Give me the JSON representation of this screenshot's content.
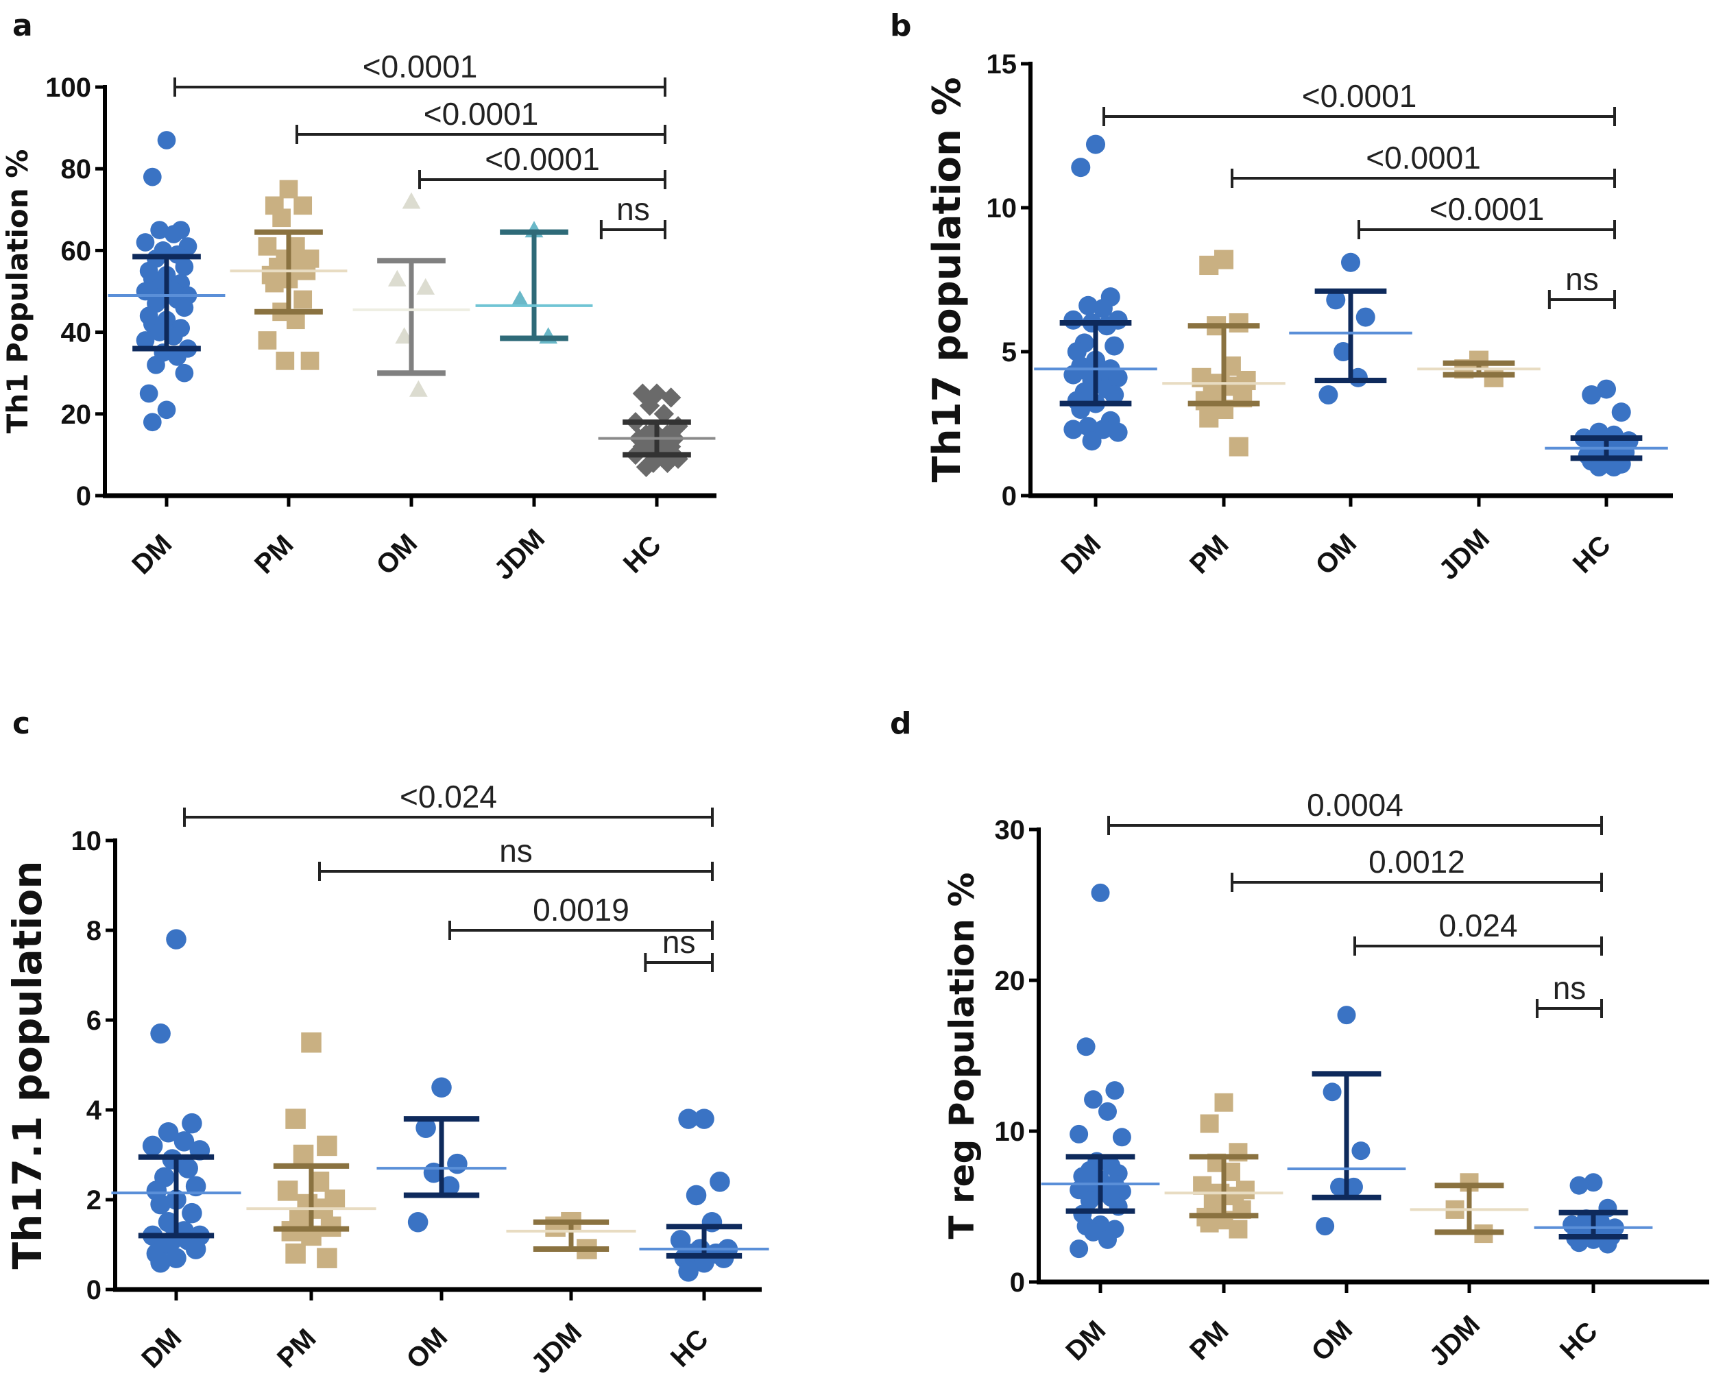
{
  "chart_data": [
    {
      "panel": "a",
      "type": "scatter",
      "ylabel": "Th1 Population %",
      "ylim": [
        0,
        100
      ],
      "yticks": [
        0,
        20,
        40,
        60,
        80,
        100
      ],
      "categories": [
        "DM",
        "PM",
        "OM",
        "JDM",
        "HC"
      ],
      "groups": [
        {
          "name": "DM",
          "marker": "circle",
          "color": "#3a73c4",
          "bar_color": "#0e2a5c",
          "mean_color": "#5a8fd8",
          "mean": 49,
          "sd_low": 36,
          "sd_high": 58.5,
          "values": [
            87,
            78,
            65,
            65,
            64,
            62,
            61,
            60,
            59,
            58,
            56,
            55,
            54,
            53,
            52,
            51,
            50,
            50,
            49,
            49,
            48,
            47,
            46,
            44,
            43,
            42,
            41,
            40,
            39,
            38,
            36,
            35,
            34,
            32,
            30,
            25,
            21,
            18
          ]
        },
        {
          "name": "PM",
          "marker": "square",
          "color": "#c9b082",
          "bar_color": "#8a7240",
          "mean_color": "#e8dcc2",
          "mean": 55,
          "sd_low": 45,
          "sd_high": 64.5,
          "values": [
            75,
            71,
            71,
            68,
            61,
            61,
            58,
            58,
            57,
            56,
            55,
            54,
            53,
            52,
            48,
            45,
            43,
            38,
            33,
            33
          ]
        },
        {
          "name": "OM",
          "marker": "triangle",
          "color": "#dcdcd0",
          "bar_color": "#808080",
          "mean_color": "#eeeee2",
          "mean": 45.5,
          "sd_low": 30,
          "sd_high": 57.5,
          "values": [
            72,
            53,
            51,
            39,
            26
          ]
        },
        {
          "name": "JDM",
          "marker": "triangle",
          "color": "#6ab8c8",
          "bar_color": "#2e6a78",
          "mean_color": "#70c4d4",
          "mean": 46.5,
          "sd_low": 38.5,
          "sd_high": 64.5,
          "values": [
            65,
            48,
            39
          ]
        },
        {
          "name": "HC",
          "marker": "diamond",
          "color": "#6a6a6a",
          "bar_color": "#333333",
          "mean_color": "#8a8a8a",
          "mean": 14,
          "sd_low": 10,
          "sd_high": 18,
          "values": [
            25,
            25,
            24,
            22,
            20,
            18,
            17,
            16,
            15,
            15,
            14,
            14,
            13,
            12,
            12,
            11,
            10,
            10,
            9,
            8,
            8,
            7
          ]
        }
      ],
      "comparisons": [
        {
          "from": "DM",
          "to": "HC",
          "label": "<0.0001"
        },
        {
          "from": "PM",
          "to": "HC",
          "label": "<0.0001"
        },
        {
          "from": "OM",
          "to": "HC",
          "label": "<0.0001"
        },
        {
          "from": "JDM",
          "to": "HC",
          "label": "ns"
        }
      ]
    },
    {
      "panel": "b",
      "type": "scatter",
      "ylabel": "Th17 population %",
      "ylim": [
        0,
        15
      ],
      "yticks": [
        0,
        5,
        10,
        15
      ],
      "categories": [
        "DM",
        "PM",
        "OM",
        "JDM",
        "HC"
      ],
      "groups": [
        {
          "name": "DM",
          "marker": "circle",
          "color": "#3a73c4",
          "bar_color": "#0e2a5c",
          "mean_color": "#5a8fd8",
          "mean": 4.4,
          "sd_low": 3.2,
          "sd_high": 6.0,
          "values": [
            12.2,
            11.4,
            6.9,
            6.6,
            6.5,
            6.1,
            6.1,
            6.0,
            5.9,
            5.3,
            5.2,
            5.0,
            4.7,
            4.5,
            4.4,
            4.3,
            4.2,
            4.2,
            4.1,
            4.0,
            3.7,
            3.6,
            3.5,
            3.3,
            3.2,
            3.0,
            2.6,
            2.4,
            2.3,
            2.3,
            2.2,
            1.9
          ]
        },
        {
          "name": "PM",
          "marker": "square",
          "color": "#c9b082",
          "bar_color": "#8a7240",
          "mean_color": "#e8dcc2",
          "mean": 3.9,
          "sd_low": 3.2,
          "sd_high": 5.9,
          "values": [
            8.2,
            8.0,
            6.0,
            5.9,
            4.5,
            4.1,
            4.0,
            3.9,
            3.8,
            3.6,
            3.4,
            3.3,
            3.0,
            2.7,
            1.7
          ]
        },
        {
          "name": "OM",
          "marker": "circle",
          "color": "#3a73c4",
          "bar_color": "#0e2a5c",
          "mean_color": "#5a8fd8",
          "mean": 5.65,
          "sd_low": 4.0,
          "sd_high": 7.1,
          "values": [
            8.1,
            6.8,
            6.2,
            5.0,
            4.1,
            3.5
          ]
        },
        {
          "name": "JDM",
          "marker": "square",
          "color": "#c9b082",
          "bar_color": "#8a7240",
          "mean_color": "#e8dcc2",
          "mean": 4.4,
          "sd_low": 4.2,
          "sd_high": 4.6,
          "values": [
            4.7,
            4.4,
            4.1
          ]
        },
        {
          "name": "HC",
          "marker": "circle",
          "color": "#3a73c4",
          "bar_color": "#0e2a5c",
          "mean_color": "#5a8fd8",
          "mean": 1.65,
          "sd_low": 1.3,
          "sd_high": 2.0,
          "values": [
            3.7,
            3.5,
            2.9,
            2.2,
            2.1,
            2.0,
            1.9,
            1.8,
            1.7,
            1.6,
            1.5,
            1.4,
            1.3,
            1.2,
            1.1,
            1.0,
            1.0
          ]
        }
      ],
      "comparisons": [
        {
          "from": "DM",
          "to": "HC",
          "label": "<0.0001"
        },
        {
          "from": "PM",
          "to": "HC",
          "label": "<0.0001"
        },
        {
          "from": "OM",
          "to": "HC",
          "label": "<0.0001"
        },
        {
          "from": "JDM",
          "to": "HC",
          "label": "ns"
        }
      ]
    },
    {
      "panel": "c",
      "type": "scatter",
      "ylabel": "Th17.1 population",
      "ylim": [
        0,
        10
      ],
      "yticks": [
        0,
        2,
        4,
        6,
        8,
        10
      ],
      "categories": [
        "DM",
        "PM",
        "OM",
        "JDM",
        "HC"
      ],
      "groups": [
        {
          "name": "DM",
          "marker": "circle",
          "color": "#3a73c4",
          "bar_color": "#0e2a5c",
          "mean_color": "#5a8fd8",
          "mean": 2.15,
          "sd_low": 1.2,
          "sd_high": 2.95,
          "values": [
            7.8,
            5.7,
            3.7,
            3.5,
            3.3,
            3.2,
            3.1,
            2.9,
            2.7,
            2.5,
            2.3,
            2.2,
            2.0,
            1.9,
            1.7,
            1.5,
            1.3,
            1.2,
            1.2,
            1.1,
            1.1,
            1.0,
            0.9,
            0.8,
            0.7,
            0.6
          ]
        },
        {
          "name": "PM",
          "marker": "square",
          "color": "#c9b082",
          "bar_color": "#8a7240",
          "mean_color": "#e8dcc2",
          "mean": 1.8,
          "sd_low": 1.35,
          "sd_high": 2.75,
          "values": [
            5.5,
            3.8,
            3.2,
            3.0,
            2.4,
            2.2,
            2.0,
            1.9,
            1.8,
            1.6,
            1.4,
            1.3,
            1.2,
            0.8,
            0.7
          ]
        },
        {
          "name": "OM",
          "marker": "circle",
          "color": "#3a73c4",
          "bar_color": "#0e2a5c",
          "mean_color": "#5a8fd8",
          "mean": 2.7,
          "sd_low": 2.1,
          "sd_high": 3.8,
          "values": [
            4.5,
            3.6,
            2.8,
            2.6,
            2.3,
            1.5
          ]
        },
        {
          "name": "JDM",
          "marker": "square",
          "color": "#c9b082",
          "bar_color": "#8a7240",
          "mean_color": "#e8dcc2",
          "mean": 1.3,
          "sd_low": 0.9,
          "sd_high": 1.5,
          "values": [
            1.5,
            1.4,
            0.9
          ]
        },
        {
          "name": "HC",
          "marker": "circle",
          "color": "#3a73c4",
          "bar_color": "#0e2a5c",
          "mean_color": "#5a8fd8",
          "mean": 0.9,
          "sd_low": 0.75,
          "sd_high": 1.4,
          "values": [
            3.8,
            3.8,
            2.4,
            2.1,
            1.5,
            1.1,
            0.9,
            0.9,
            0.8,
            0.8,
            0.7,
            0.7,
            0.6,
            0.4
          ]
        }
      ],
      "comparisons": [
        {
          "from": "DM",
          "to": "HC",
          "label": "<0.024"
        },
        {
          "from": "PM",
          "to": "HC",
          "label": "ns"
        },
        {
          "from": "OM",
          "to": "HC",
          "label": "0.0019"
        },
        {
          "from": "JDM",
          "to": "HC",
          "label": "ns"
        }
      ]
    },
    {
      "panel": "d",
      "type": "scatter",
      "ylabel": "T reg Population %",
      "ylim": [
        0,
        30
      ],
      "yticks": [
        0,
        10,
        20,
        30
      ],
      "categories": [
        "DM",
        "PM",
        "OM",
        "JDM",
        "HC"
      ],
      "groups": [
        {
          "name": "DM",
          "marker": "circle",
          "color": "#3a73c4",
          "bar_color": "#0e2a5c",
          "mean_color": "#5a8fd8",
          "mean": 6.5,
          "sd_low": 4.7,
          "sd_high": 8.3,
          "values": [
            25.8,
            15.6,
            12.7,
            12.1,
            11.3,
            9.8,
            9.6,
            8.0,
            7.7,
            7.4,
            7.2,
            7.0,
            6.8,
            6.6,
            6.5,
            6.4,
            6.2,
            6.1,
            6.0,
            5.8,
            5.6,
            5.4,
            5.0,
            4.5,
            3.8,
            3.7,
            3.5,
            3.3,
            2.8,
            2.2
          ]
        },
        {
          "name": "PM",
          "marker": "square",
          "color": "#c9b082",
          "bar_color": "#8a7240",
          "mean_color": "#e8dcc2",
          "mean": 5.9,
          "sd_low": 4.4,
          "sd_high": 8.3,
          "values": [
            11.9,
            10.5,
            8.6,
            7.9,
            7.3,
            6.4,
            6.1,
            5.9,
            5.7,
            5.3,
            4.8,
            4.3,
            4.1,
            3.9,
            3.5
          ]
        },
        {
          "name": "OM",
          "marker": "circle",
          "color": "#3a73c4",
          "bar_color": "#0e2a5c",
          "mean_color": "#5a8fd8",
          "mean": 7.5,
          "sd_low": 5.6,
          "sd_high": 13.8,
          "values": [
            17.7,
            12.6,
            8.7,
            6.3,
            6.3,
            3.7
          ]
        },
        {
          "name": "JDM",
          "marker": "square",
          "color": "#c9b082",
          "bar_color": "#8a7240",
          "mean_color": "#e8dcc2",
          "mean": 4.8,
          "sd_low": 3.3,
          "sd_high": 6.4,
          "values": [
            6.6,
            4.8,
            3.2
          ]
        },
        {
          "name": "HC",
          "marker": "circle",
          "color": "#3a73c4",
          "bar_color": "#0e2a5c",
          "mean_color": "#5a8fd8",
          "mean": 3.6,
          "sd_low": 3.0,
          "sd_high": 4.6,
          "values": [
            6.6,
            6.4,
            4.9,
            4.2,
            4.0,
            3.8,
            3.6,
            3.5,
            3.3,
            3.1,
            3.0,
            2.9,
            2.8,
            2.6,
            2.5
          ]
        }
      ],
      "comparisons": [
        {
          "from": "DM",
          "to": "HC",
          "label": "0.0004"
        },
        {
          "from": "PM",
          "to": "HC",
          "label": "0.0012"
        },
        {
          "from": "OM",
          "to": "HC",
          "label": "0.024"
        },
        {
          "from": "JDM",
          "to": "HC",
          "label": "ns"
        }
      ]
    }
  ]
}
